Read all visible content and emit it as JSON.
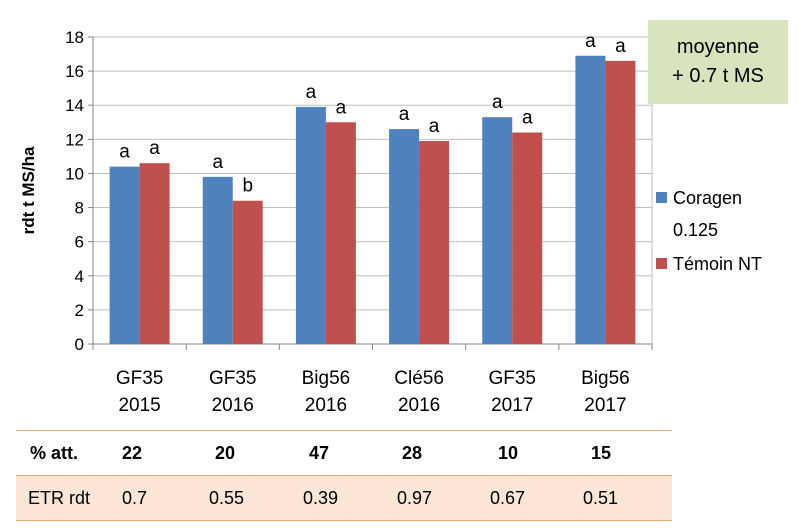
{
  "chart_data": {
    "type": "bar",
    "ylabel": "rdt t MS/ha",
    "xlabel": "",
    "ylim": [
      0,
      18
    ],
    "yticks": [
      0,
      2,
      4,
      6,
      8,
      10,
      12,
      14,
      16,
      18
    ],
    "categories": [
      [
        "GF35",
        "2015"
      ],
      [
        "GF35",
        "2016"
      ],
      [
        "Big56",
        "2016"
      ],
      [
        "Clé56",
        "2016"
      ],
      [
        "GF35",
        "2017"
      ],
      [
        "Big56",
        "2017"
      ]
    ],
    "series": [
      {
        "name": "Coragen 0.125",
        "legend_lines": [
          "Coragen",
          "0.125"
        ],
        "color": "#4f81bd",
        "values": [
          10.4,
          9.8,
          13.9,
          12.6,
          13.3,
          16.9
        ],
        "labels": [
          "a",
          "a",
          "a",
          "a",
          "a",
          "a"
        ]
      },
      {
        "name": "Témoin NT",
        "legend_lines": [
          "Témoin NT"
        ],
        "color": "#c0504d",
        "values": [
          10.6,
          8.4,
          13.0,
          11.9,
          12.4,
          16.6
        ],
        "labels": [
          "a",
          "b",
          "a",
          "a",
          "a",
          "a"
        ]
      }
    ],
    "grid": true,
    "legend_position": "right"
  },
  "note": {
    "lines": [
      "moyenne",
      "+ 0.7 t MS"
    ],
    "background": "#d7e4bd"
  },
  "table": {
    "rows": [
      {
        "label": "% att.",
        "values": [
          "22",
          "20",
          "47",
          "28",
          "10",
          "15"
        ]
      },
      {
        "label": "ETR rdt",
        "values": [
          "0.7",
          "0.55",
          "0.39",
          "0.97",
          "0.67",
          "0.51"
        ]
      }
    ]
  }
}
